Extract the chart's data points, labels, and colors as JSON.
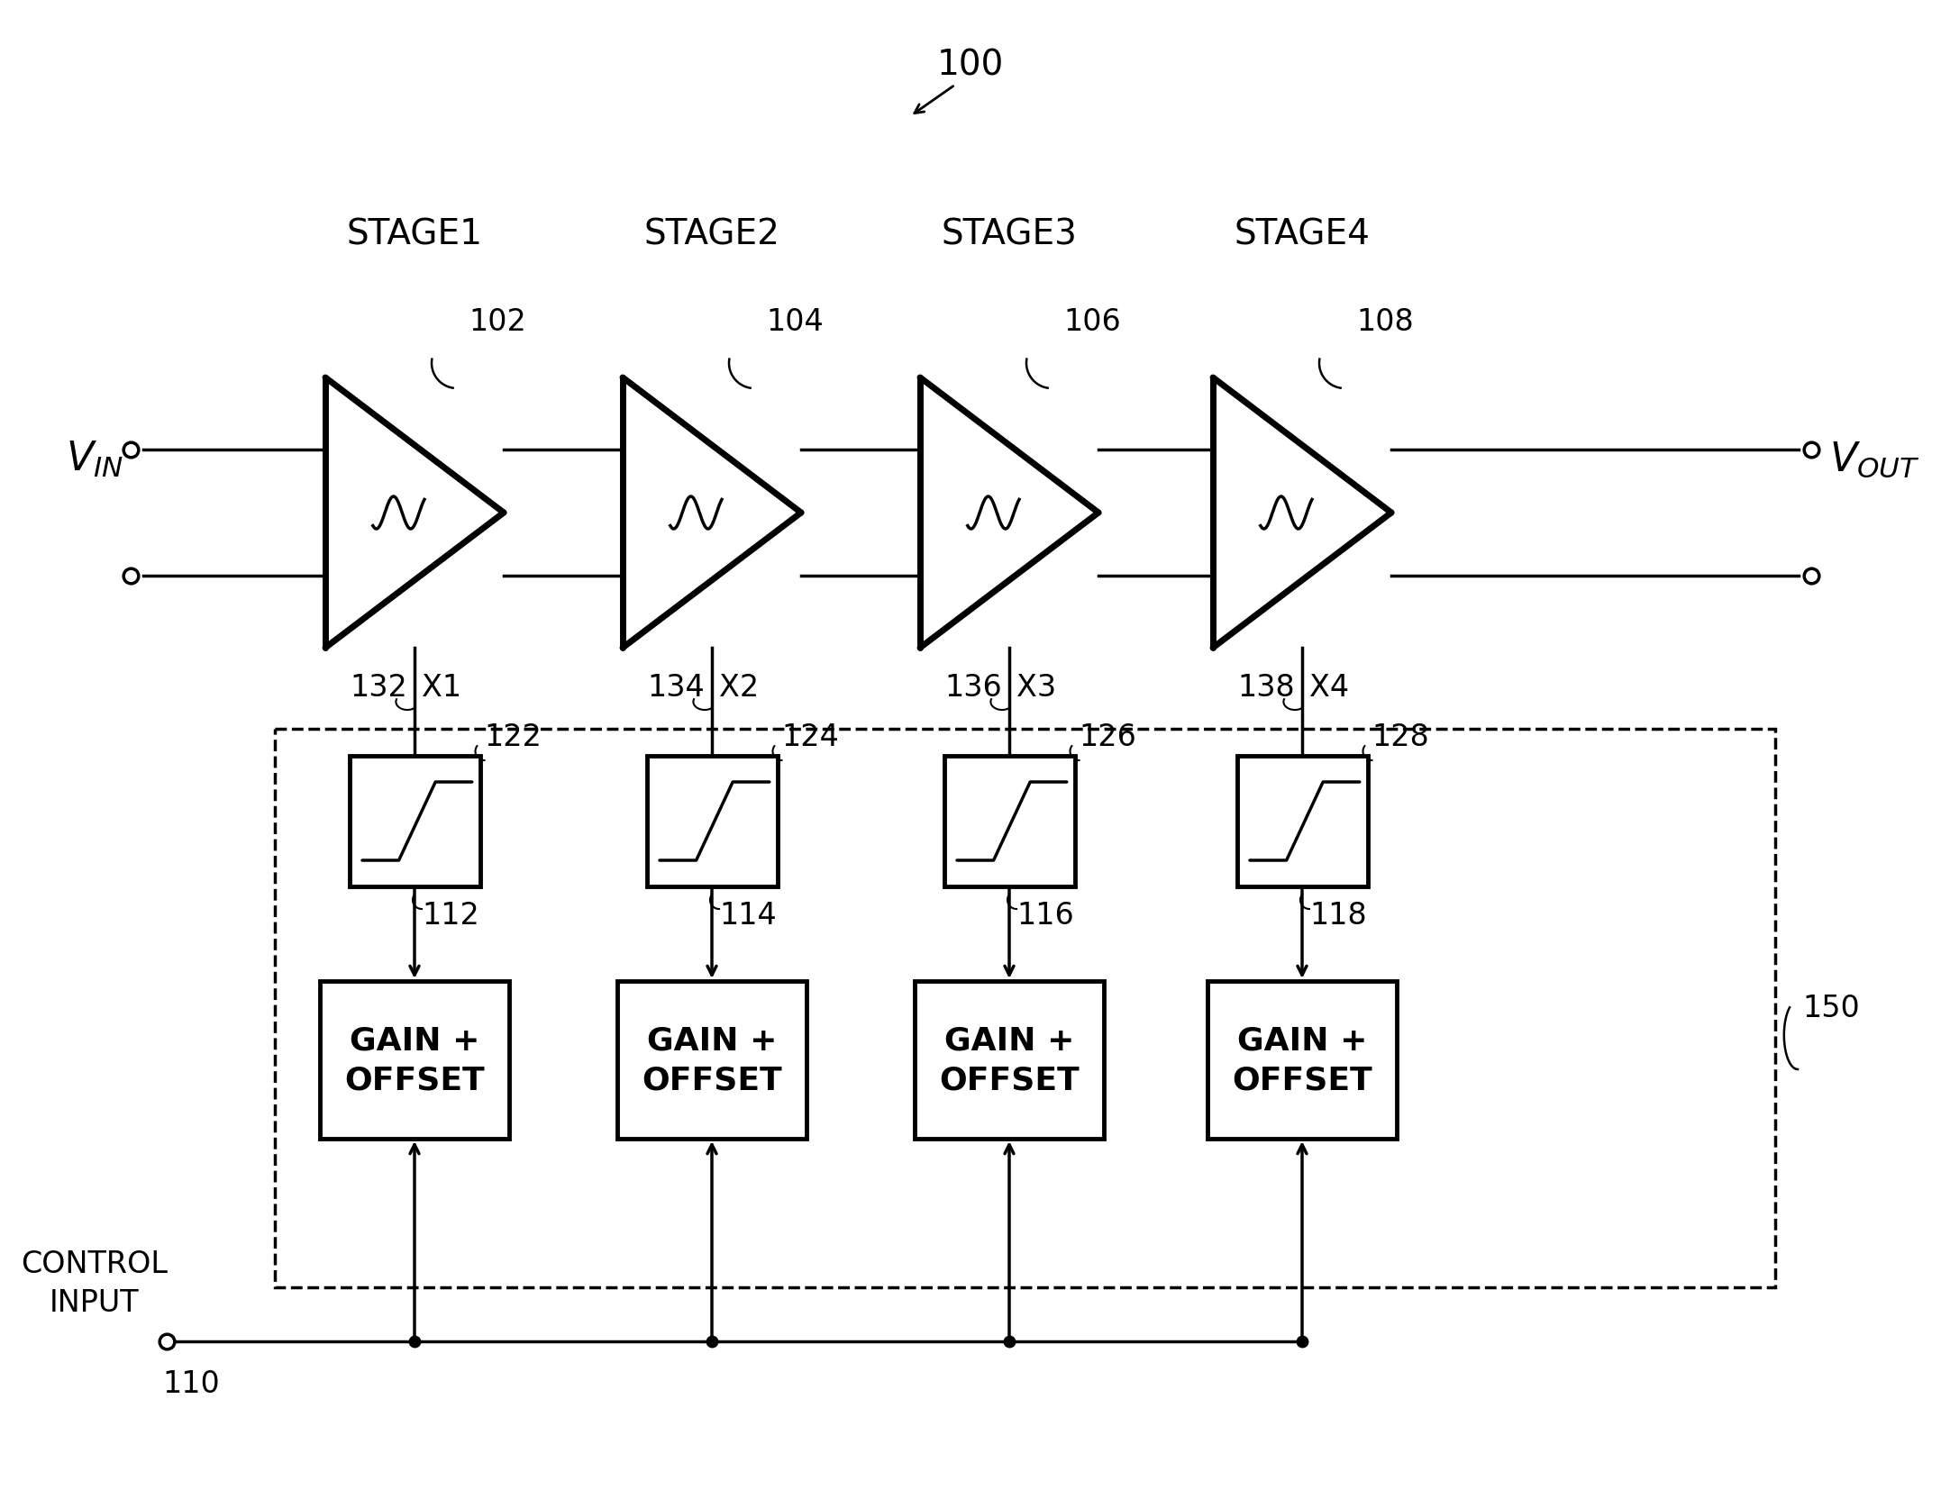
{
  "figsize": [
    21.54,
    16.65
  ],
  "dpi": 100,
  "bg_color": "#ffffff",
  "stages": [
    "STAGE1",
    "STAGE2",
    "STAGE3",
    "STAGE4"
  ],
  "stage_labels": [
    "102",
    "104",
    "106",
    "108"
  ],
  "gain_labels": [
    "112",
    "114",
    "116",
    "118"
  ],
  "go_labels": [
    "122",
    "124",
    "126",
    "128"
  ],
  "x_labels": [
    "X1",
    "X2",
    "X3",
    "X4"
  ],
  "x_label_nums": [
    "132",
    "134",
    "136",
    "138"
  ],
  "label_100": "100",
  "label_110": "110",
  "label_150": "150"
}
